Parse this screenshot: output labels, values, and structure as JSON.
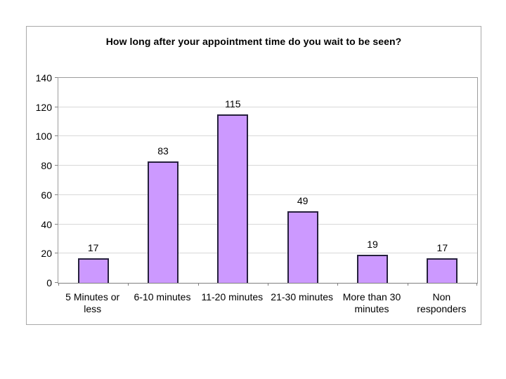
{
  "chart_data": {
    "type": "bar",
    "title": "How long after your appointment time do you wait to be seen?",
    "categories": [
      "5 Minutes or less",
      "6-10 minutes",
      "11-20 minutes",
      "21-30 minutes",
      "More than 30 minutes",
      "Non responders"
    ],
    "values": [
      17,
      83,
      115,
      49,
      19,
      17
    ],
    "data_labels": [
      17,
      83,
      115,
      49,
      19,
      17
    ],
    "xlabel": "",
    "ylabel": "",
    "ylim": [
      0,
      140
    ],
    "yticks": [
      0,
      20,
      40,
      60,
      80,
      100,
      120,
      140
    ],
    "grid": true,
    "legend": "none",
    "colors": {
      "bar_fill": "#CC99FF",
      "bar_border": "#26203D",
      "gridline": "#D8D8D8",
      "plot_border": "#9C9C9C",
      "axis_line": "#808080",
      "frame_border": "#A9A9A9",
      "text": "#000000",
      "background": "#FFFFFF"
    }
  }
}
